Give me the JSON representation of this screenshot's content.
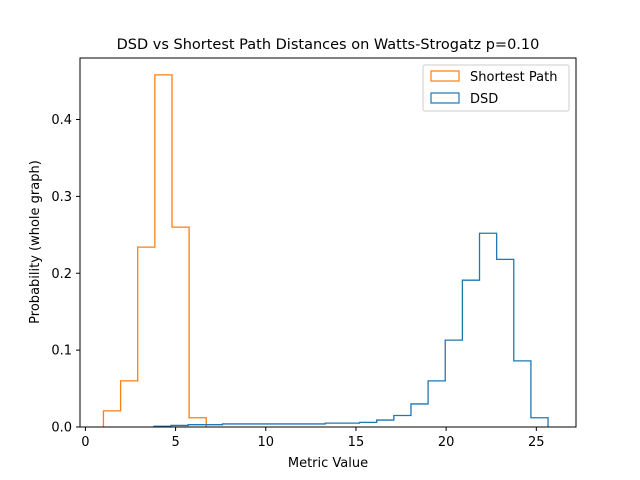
{
  "chart_data": {
    "type": "histogram",
    "title": "DSD vs Shortest Path Distances on Watts-Strogatz p=0.10",
    "xlabel": "Metric Value",
    "ylabel": "Probability (whole graph)",
    "xlim": [
      -0.3,
      27.2
    ],
    "ylim": [
      0.0,
      0.48
    ],
    "xticks": [
      0,
      5,
      10,
      15,
      20,
      25
    ],
    "xtick_labels": [
      "0",
      "5",
      "10",
      "15",
      "20",
      "25"
    ],
    "yticks": [
      0.0,
      0.1,
      0.2,
      0.3,
      0.4
    ],
    "ytick_labels": [
      "0.0",
      "0.1",
      "0.2",
      "0.3",
      "0.4"
    ],
    "grid": false,
    "legend_position": "top-right",
    "series": [
      {
        "name": "Shortest Path",
        "color": "#ff7f0e",
        "edges": [
          1.0,
          1.95,
          2.9,
          3.85,
          4.8,
          5.75,
          6.7
        ],
        "values": [
          0.021,
          0.06,
          0.234,
          0.458,
          0.26,
          0.012
        ]
      },
      {
        "name": "DSD",
        "color": "#1f77b4",
        "edges": [
          3.8,
          4.75,
          5.7,
          6.65,
          7.6,
          8.55,
          9.5,
          10.45,
          11.4,
          12.35,
          13.3,
          14.25,
          15.2,
          16.15,
          17.1,
          18.05,
          19.0,
          19.95,
          20.9,
          21.85,
          22.8,
          23.75,
          24.7,
          25.65
        ],
        "values": [
          0.001,
          0.002,
          0.003,
          0.003,
          0.004,
          0.004,
          0.004,
          0.004,
          0.004,
          0.004,
          0.005,
          0.005,
          0.006,
          0.009,
          0.015,
          0.03,
          0.06,
          0.113,
          0.191,
          0.252,
          0.218,
          0.086,
          0.012
        ]
      }
    ]
  }
}
